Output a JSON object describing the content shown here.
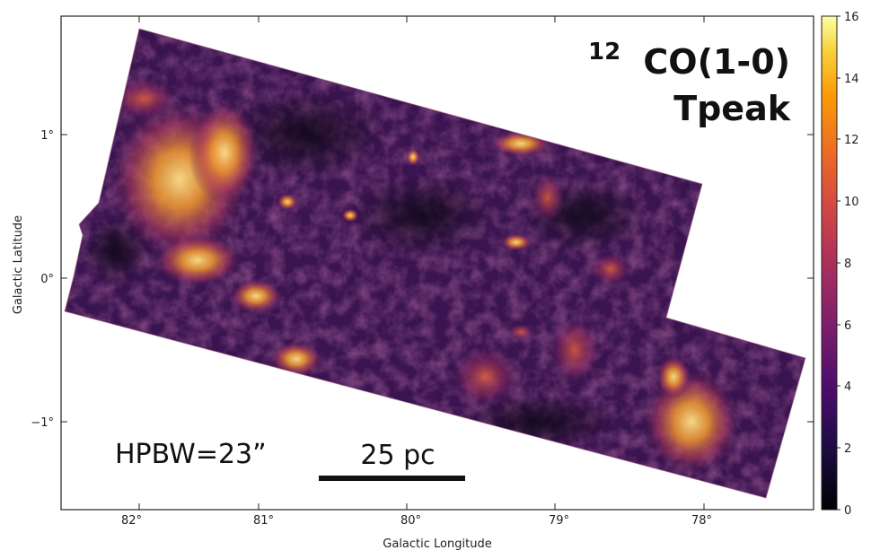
{
  "title": {
    "line1_sup": "12",
    "line1_main": "CO(1-0)",
    "line2": "Tpeak"
  },
  "beam_label": "HPBW=23”",
  "scale_bar_label": "25 pc",
  "x_axis": {
    "title": "Galactic Longitude",
    "ticks": [
      "82°",
      "81°",
      "80°",
      "79°",
      "78°"
    ]
  },
  "y_axis": {
    "title": "Galactic Latitude",
    "ticks": [
      "1°",
      "0°",
      "−1°"
    ]
  },
  "colorbar": {
    "ticks": [
      "16",
      "14",
      "12",
      "10",
      "8",
      "6",
      "4",
      "2",
      "0"
    ],
    "colormap": [
      "#000004",
      "#1b0c41",
      "#4a0c6b",
      "#781c6d",
      "#a52c60",
      "#cf4446",
      "#ed6925",
      "#fb9b06",
      "#f7d13d",
      "#fcffa4"
    ]
  },
  "colors": {
    "map_base": "#3a1450",
    "map_dark": "#14081e",
    "emission_mid": "#b03a5a",
    "emission_bright": "#f29a2e",
    "emission_peak": "#fde28a"
  }
}
